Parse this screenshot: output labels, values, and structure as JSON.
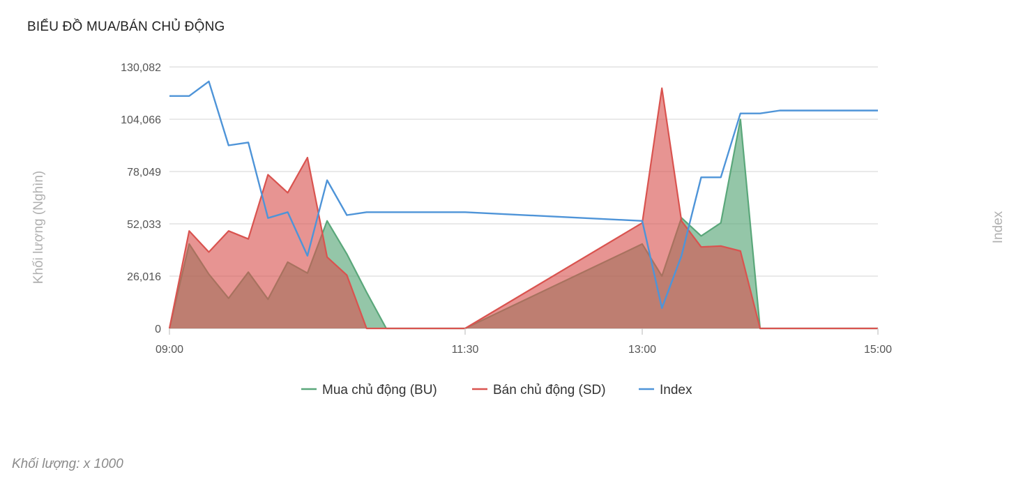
{
  "header": {
    "title": "BIỂU ĐỒ MUA/BÁN CHỦ ĐỘNG"
  },
  "footnote": "Khối lượng: x 1000",
  "chart_data": {
    "type": "area",
    "title": "BIỂU ĐỒ MUA/BÁN CHỦ ĐỘNG",
    "ylabel": "Khối lượng (Nghìn)",
    "y2label": "Index",
    "x_ticks": [
      "09:00",
      "11:30",
      "13:00",
      "15:00"
    ],
    "y_ticks": [
      "0",
      "26,016",
      "52,033",
      "78,049",
      "104,066",
      "130,082"
    ],
    "ylim": [
      0,
      130082
    ],
    "x": [
      "09:00",
      "09:10",
      "09:20",
      "09:30",
      "09:40",
      "09:50",
      "10:00",
      "10:10",
      "10:20",
      "10:30",
      "10:40",
      "10:50",
      "11:00",
      "11:10",
      "11:20",
      "11:30",
      "13:00",
      "13:10",
      "13:20",
      "13:30",
      "13:40",
      "13:50",
      "14:00",
      "14:10",
      "14:20",
      "14:30",
      "14:40",
      "14:50",
      "15:00"
    ],
    "grid": true,
    "legend_position": "bottom",
    "colors": {
      "bu": "#5aa77a",
      "sd": "#d9534f",
      "index": "#4e94d8"
    },
    "series": [
      {
        "name": "Mua chủ động (BU)",
        "key": "bu",
        "values": [
          0,
          42000,
          27000,
          15000,
          28000,
          14500,
          33000,
          27500,
          53500,
          37000,
          18000,
          0,
          0,
          0,
          0,
          0,
          42000,
          26000,
          55000,
          46000,
          52500,
          104000,
          0,
          0,
          0,
          0,
          0,
          0,
          0
        ]
      },
      {
        "name": "Bán chủ động (SD)",
        "key": "sd",
        "values": [
          0,
          48500,
          38000,
          48500,
          44500,
          76500,
          67500,
          85000,
          35500,
          26500,
          0,
          0,
          0,
          0,
          0,
          0,
          52500,
          119500,
          53500,
          40500,
          41000,
          38500,
          0,
          0,
          0,
          0,
          0,
          0,
          0
        ]
      },
      {
        "name": "Index",
        "key": "index",
        "values": [
          1220,
          1220,
          1225,
          1203,
          1204,
          1178,
          1180,
          1165,
          1191,
          1179,
          1180,
          1180,
          1180,
          1180,
          1180,
          1180,
          1177,
          1147,
          1165,
          1192,
          1192,
          1214,
          1214,
          1215,
          1215,
          1215,
          1215,
          1215,
          1215
        ]
      }
    ],
    "index_range": [
      1140,
      1230
    ]
  }
}
